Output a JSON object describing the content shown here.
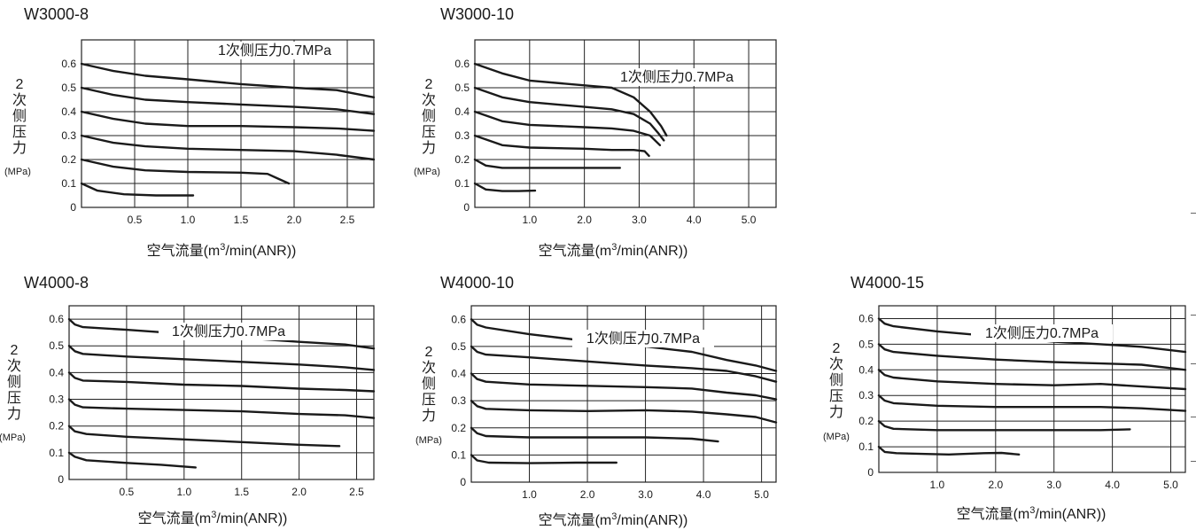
{
  "page": {
    "background": "#ffffff",
    "ink": "#1a1a1a",
    "grid": "#222222"
  },
  "chart_data": [
    {
      "type": "line",
      "title": "W3000-8",
      "xlabel": "空气流量(m³/min(ANR))",
      "xlabel_parts": {
        "pre": "空气流量(m",
        "sup": "3",
        "post": "/min(ANR))"
      },
      "ylabel": "2次侧压力",
      "ylabel_chars": [
        "2",
        "次",
        "侧",
        "压",
        "力"
      ],
      "yunit": "(MPa)",
      "annotation": "1次侧压力0.7MPa",
      "xlim": [
        0,
        2.75
      ],
      "ylim": [
        0,
        0.7
      ],
      "xticks": [
        0.5,
        1.0,
        1.5,
        2.0,
        2.5
      ],
      "xtick_labels": [
        "0.5",
        "1.0",
        "1.5",
        "2.0",
        "2.5"
      ],
      "yticks": [
        0,
        0.1,
        0.2,
        0.3,
        0.4,
        0.5,
        0.6
      ],
      "ytick_labels": [
        "0",
        "0.1",
        "0.2",
        "0.3",
        "0.4",
        "0.5",
        "0.6"
      ],
      "grid": true,
      "series": [
        {
          "x": [
            0,
            0.3,
            0.6,
            1.0,
            1.5,
            2.0,
            2.4,
            2.75
          ],
          "y": [
            0.6,
            0.57,
            0.55,
            0.535,
            0.515,
            0.5,
            0.49,
            0.46
          ]
        },
        {
          "x": [
            0,
            0.3,
            0.6,
            1.0,
            1.5,
            2.0,
            2.4,
            2.75
          ],
          "y": [
            0.5,
            0.47,
            0.45,
            0.44,
            0.43,
            0.42,
            0.41,
            0.39
          ]
        },
        {
          "x": [
            0,
            0.3,
            0.6,
            1.0,
            1.5,
            2.0,
            2.4,
            2.75
          ],
          "y": [
            0.4,
            0.37,
            0.35,
            0.34,
            0.34,
            0.335,
            0.33,
            0.32
          ]
        },
        {
          "x": [
            0,
            0.3,
            0.6,
            1.0,
            1.5,
            2.0,
            2.4,
            2.75
          ],
          "y": [
            0.3,
            0.27,
            0.255,
            0.245,
            0.24,
            0.235,
            0.22,
            0.2
          ]
        },
        {
          "x": [
            0,
            0.3,
            0.6,
            1.0,
            1.5,
            1.75,
            1.85,
            1.95
          ],
          "y": [
            0.2,
            0.17,
            0.155,
            0.148,
            0.145,
            0.14,
            0.12,
            0.1
          ]
        },
        {
          "x": [
            0,
            0.15,
            0.4,
            0.7,
            0.9,
            1.05
          ],
          "y": [
            0.1,
            0.07,
            0.055,
            0.05,
            0.05,
            0.05
          ]
        }
      ]
    },
    {
      "type": "line",
      "title": "W3000-10",
      "xlabel": "空气流量(m³/min(ANR))",
      "xlabel_parts": {
        "pre": "空气流量(m",
        "sup": "3",
        "post": "/min(ANR))"
      },
      "ylabel": "2次侧压力",
      "ylabel_chars": [
        "2",
        "次",
        "侧",
        "压",
        "力"
      ],
      "yunit": "(MPa)",
      "annotation": "1次侧压力0.7MPa",
      "xlim": [
        0,
        5.5
      ],
      "ylim": [
        0,
        0.7
      ],
      "xticks": [
        1,
        2,
        3,
        4,
        5
      ],
      "xtick_labels": [
        "1.0",
        "2.0",
        "3.0",
        "4.0",
        "5.0"
      ],
      "yticks": [
        0,
        0.1,
        0.2,
        0.3,
        0.4,
        0.5,
        0.6
      ],
      "ytick_labels": [
        "0",
        "0.1",
        "0.2",
        "0.3",
        "0.4",
        "0.5",
        "0.6"
      ],
      "grid": true,
      "series": [
        {
          "x": [
            0,
            0.5,
            1.0,
            2.0,
            2.5,
            2.9,
            3.2,
            3.4,
            3.5
          ],
          "y": [
            0.6,
            0.56,
            0.53,
            0.51,
            0.5,
            0.46,
            0.4,
            0.34,
            0.3
          ]
        },
        {
          "x": [
            0,
            0.5,
            1.0,
            2.0,
            2.5,
            2.9,
            3.2,
            3.35,
            3.45
          ],
          "y": [
            0.5,
            0.46,
            0.44,
            0.42,
            0.41,
            0.39,
            0.35,
            0.31,
            0.28
          ]
        },
        {
          "x": [
            0,
            0.5,
            1.0,
            2.0,
            2.5,
            2.9,
            3.2,
            3.38
          ],
          "y": [
            0.4,
            0.36,
            0.345,
            0.335,
            0.33,
            0.32,
            0.3,
            0.26
          ]
        },
        {
          "x": [
            0,
            0.5,
            1.0,
            2.0,
            2.5,
            2.9,
            3.1,
            3.18
          ],
          "y": [
            0.3,
            0.26,
            0.25,
            0.245,
            0.24,
            0.24,
            0.235,
            0.215
          ]
        },
        {
          "x": [
            0,
            0.2,
            0.5,
            1.0,
            2.0,
            2.65
          ],
          "y": [
            0.2,
            0.175,
            0.165,
            0.165,
            0.165,
            0.165
          ]
        },
        {
          "x": [
            0,
            0.2,
            0.5,
            0.8,
            1.1
          ],
          "y": [
            0.1,
            0.075,
            0.068,
            0.068,
            0.07
          ]
        }
      ]
    },
    {
      "type": "line",
      "title": "W4000-8",
      "xlabel": "空气流量(m³/min(ANR))",
      "xlabel_parts": {
        "pre": "空气流量(m",
        "sup": "3",
        "post": "/min(ANR))"
      },
      "ylabel": "2次侧压力",
      "ylabel_chars": [
        "2",
        "次",
        "侧",
        "压",
        "力"
      ],
      "yunit": "(MPa)",
      "annotation": "1次侧压力0.7MPa",
      "xlim": [
        0,
        2.65
      ],
      "ylim": [
        0,
        0.65
      ],
      "xticks": [
        0.5,
        1.0,
        1.5,
        2.0,
        2.5
      ],
      "xtick_labels": [
        "0.5",
        "1.0",
        "1.5",
        "2.0",
        "2.5"
      ],
      "yticks": [
        0,
        0.1,
        0.2,
        0.3,
        0.4,
        0.5,
        0.6
      ],
      "ytick_labels": [
        "0",
        "0.1",
        "0.2",
        "0.3",
        "0.4",
        "0.5",
        "0.6"
      ],
      "grid": true,
      "series": [
        {
          "x": [
            0,
            0.05,
            0.12,
            0.5,
            1.0,
            1.5,
            2.0,
            2.4,
            2.65
          ],
          "y": [
            0.6,
            0.58,
            0.57,
            0.56,
            0.545,
            0.53,
            0.515,
            0.505,
            0.49
          ]
        },
        {
          "x": [
            0,
            0.05,
            0.12,
            0.5,
            1.0,
            1.5,
            2.0,
            2.4,
            2.65
          ],
          "y": [
            0.5,
            0.48,
            0.47,
            0.46,
            0.45,
            0.44,
            0.43,
            0.42,
            0.41
          ]
        },
        {
          "x": [
            0,
            0.05,
            0.12,
            0.5,
            1.0,
            1.5,
            2.0,
            2.4,
            2.65
          ],
          "y": [
            0.4,
            0.38,
            0.37,
            0.365,
            0.355,
            0.35,
            0.34,
            0.335,
            0.33
          ]
        },
        {
          "x": [
            0,
            0.05,
            0.12,
            0.5,
            1.0,
            1.5,
            2.0,
            2.4,
            2.65
          ],
          "y": [
            0.3,
            0.28,
            0.27,
            0.265,
            0.26,
            0.255,
            0.245,
            0.24,
            0.23
          ]
        },
        {
          "x": [
            0,
            0.05,
            0.15,
            0.5,
            1.0,
            1.5,
            2.0,
            2.35
          ],
          "y": [
            0.2,
            0.18,
            0.17,
            0.16,
            0.15,
            0.14,
            0.13,
            0.125
          ]
        },
        {
          "x": [
            0,
            0.05,
            0.15,
            0.5,
            0.8,
            1.1
          ],
          "y": [
            0.1,
            0.085,
            0.072,
            0.062,
            0.055,
            0.045
          ]
        }
      ]
    },
    {
      "type": "line",
      "title": "W4000-10",
      "xlabel": "空气流量(m³/min(ANR))",
      "xlabel_parts": {
        "pre": "空气流量(m",
        "sup": "3",
        "post": "/min(ANR))"
      },
      "ylabel": "2次侧压力",
      "ylabel_chars": [
        "2",
        "次",
        "侧",
        "压",
        "力"
      ],
      "yunit": "(MPa)",
      "annotation": "1次侧压力0.7MPa",
      "xlim": [
        0,
        5.25
      ],
      "ylim": [
        0,
        0.65
      ],
      "xticks": [
        1,
        2,
        3,
        4,
        5
      ],
      "xtick_labels": [
        "1.0",
        "2.0",
        "3.0",
        "4.0",
        "5.0"
      ],
      "yticks": [
        0,
        0.1,
        0.2,
        0.3,
        0.4,
        0.5,
        0.6
      ],
      "ytick_labels": [
        "0",
        "0.1",
        "0.2",
        "0.3",
        "0.4",
        "0.5",
        "0.6"
      ],
      "grid": true,
      "series": [
        {
          "x": [
            0,
            0.1,
            0.25,
            1.0,
            2.0,
            3.0,
            3.8,
            4.4,
            4.9,
            5.25
          ],
          "y": [
            0.6,
            0.58,
            0.57,
            0.545,
            0.52,
            0.5,
            0.48,
            0.45,
            0.43,
            0.41
          ]
        },
        {
          "x": [
            0,
            0.1,
            0.25,
            1.0,
            2.0,
            3.0,
            3.8,
            4.4,
            4.9,
            5.25
          ],
          "y": [
            0.5,
            0.48,
            0.47,
            0.46,
            0.445,
            0.43,
            0.42,
            0.41,
            0.39,
            0.37
          ]
        },
        {
          "x": [
            0,
            0.1,
            0.25,
            1.0,
            2.0,
            3.0,
            3.8,
            4.4,
            4.9,
            5.25
          ],
          "y": [
            0.4,
            0.38,
            0.37,
            0.36,
            0.355,
            0.35,
            0.345,
            0.33,
            0.32,
            0.305
          ]
        },
        {
          "x": [
            0,
            0.1,
            0.25,
            1.0,
            2.0,
            3.0,
            3.8,
            4.4,
            4.9,
            5.25
          ],
          "y": [
            0.3,
            0.28,
            0.27,
            0.265,
            0.262,
            0.265,
            0.26,
            0.25,
            0.24,
            0.22
          ]
        },
        {
          "x": [
            0,
            0.1,
            0.25,
            1.0,
            2.0,
            3.0,
            3.8,
            4.25
          ],
          "y": [
            0.2,
            0.18,
            0.17,
            0.165,
            0.165,
            0.165,
            0.16,
            0.15
          ]
        },
        {
          "x": [
            0,
            0.1,
            0.3,
            1.0,
            1.8,
            2.5
          ],
          "y": [
            0.1,
            0.08,
            0.072,
            0.07,
            0.072,
            0.072
          ]
        }
      ]
    },
    {
      "type": "line",
      "title": "W4000-15",
      "xlabel": "空气流量(m³/min(ANR))",
      "xlabel_parts": {
        "pre": "空气流量(m",
        "sup": "3",
        "post": "/min(ANR))"
      },
      "ylabel": "2次侧压力",
      "ylabel_chars": [
        "2",
        "次",
        "侧",
        "压",
        "力"
      ],
      "yunit": "(MPa)",
      "annotation": "1次侧压力0.7MPa",
      "xlim": [
        0,
        5.25
      ],
      "ylim": [
        0,
        0.65
      ],
      "xticks": [
        1,
        2,
        3,
        4,
        5
      ],
      "xtick_labels": [
        "1.0",
        "2.0",
        "3.0",
        "4.0",
        "5.0"
      ],
      "yticks": [
        0,
        0.1,
        0.2,
        0.3,
        0.4,
        0.5,
        0.6
      ],
      "ytick_labels": [
        "0",
        "0.1",
        "0.2",
        "0.3",
        "0.4",
        "0.5",
        "0.6"
      ],
      "grid": true,
      "series": [
        {
          "x": [
            0,
            0.1,
            0.25,
            1.0,
            2.0,
            3.0,
            3.8,
            4.5,
            5.25
          ],
          "y": [
            0.6,
            0.58,
            0.57,
            0.55,
            0.53,
            0.51,
            0.5,
            0.49,
            0.47
          ]
        },
        {
          "x": [
            0,
            0.1,
            0.25,
            1.0,
            2.0,
            3.0,
            3.8,
            4.5,
            5.25
          ],
          "y": [
            0.5,
            0.48,
            0.47,
            0.455,
            0.44,
            0.43,
            0.425,
            0.42,
            0.4
          ]
        },
        {
          "x": [
            0,
            0.1,
            0.25,
            1.0,
            2.0,
            3.0,
            3.8,
            4.5,
            5.25
          ],
          "y": [
            0.4,
            0.38,
            0.37,
            0.355,
            0.345,
            0.34,
            0.345,
            0.335,
            0.325
          ]
        },
        {
          "x": [
            0,
            0.1,
            0.25,
            1.0,
            2.0,
            3.0,
            3.8,
            4.5,
            5.25
          ],
          "y": [
            0.3,
            0.28,
            0.27,
            0.26,
            0.255,
            0.255,
            0.255,
            0.25,
            0.24
          ]
        },
        {
          "x": [
            0,
            0.1,
            0.25,
            1.0,
            2.0,
            3.0,
            3.8,
            4.3
          ],
          "y": [
            0.2,
            0.18,
            0.17,
            0.165,
            0.165,
            0.165,
            0.165,
            0.168
          ]
        },
        {
          "x": [
            0,
            0.1,
            0.3,
            0.8,
            1.2,
            1.8,
            2.1,
            2.4
          ],
          "y": [
            0.1,
            0.08,
            0.075,
            0.072,
            0.07,
            0.075,
            0.076,
            0.07
          ]
        }
      ]
    }
  ]
}
